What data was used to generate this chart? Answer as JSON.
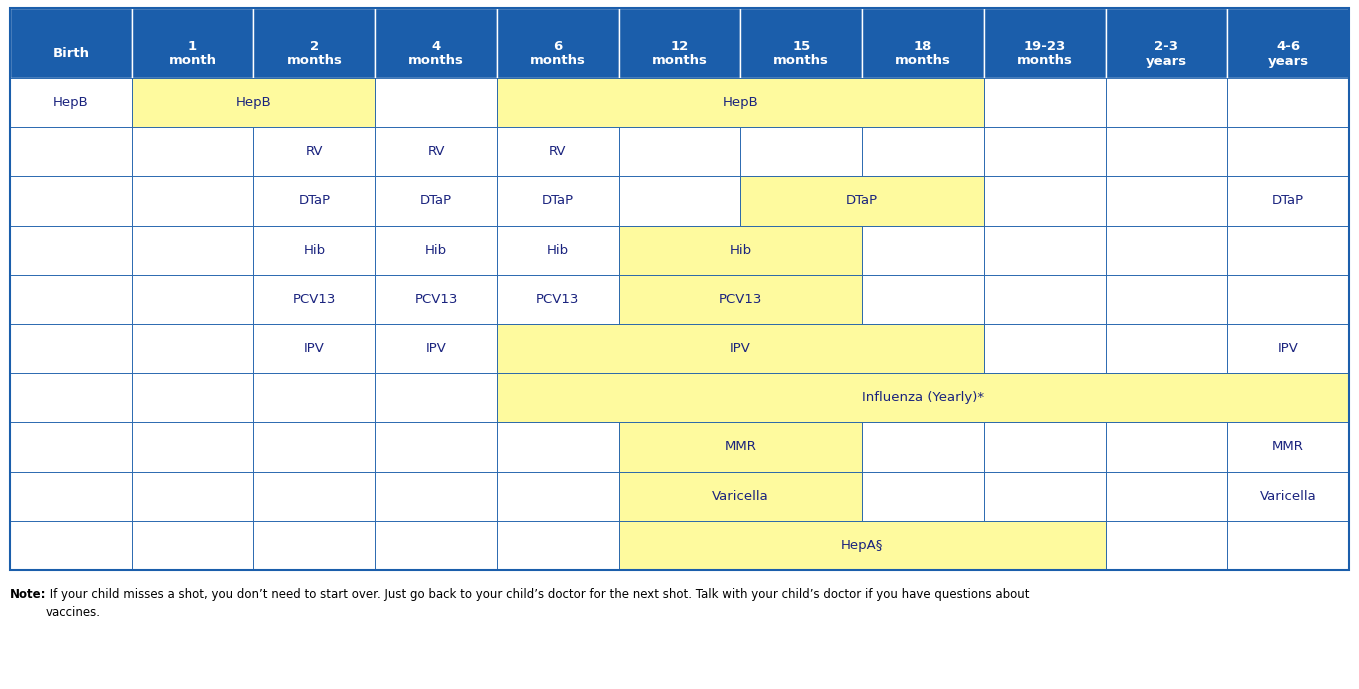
{
  "header_bg": "#1B5EAB",
  "yellow_bg": "#FEFA9E",
  "white_bg": "#FFFFFF",
  "border_color": "#1B5EAB",
  "text_color": "#1A237E",
  "col_labels": [
    "Birth",
    "1\nmonth",
    "2\nmonths",
    "4\nmonths",
    "6\nmonths",
    "12\nmonths",
    "15\nmonths",
    "18\nmonths",
    "19-23\nmonths",
    "2-3\nyears",
    "4-6\nyears"
  ],
  "note_bold": "Note:",
  "note_rest": " If your child misses a shot, you don’t need to start over. Just go back to your child’s doctor for the next shot. Talk with your child’s doctor if you have questions about\nvaccines.",
  "vaccine_spans": [
    [
      0,
      0,
      1,
      "HepB",
      false
    ],
    [
      0,
      1,
      3,
      "HepB",
      true
    ],
    [
      0,
      4,
      8,
      "HepB",
      true
    ],
    [
      1,
      2,
      3,
      "RV",
      false
    ],
    [
      1,
      3,
      4,
      "RV",
      false
    ],
    [
      1,
      4,
      5,
      "RV",
      false
    ],
    [
      2,
      2,
      3,
      "DTaP",
      false
    ],
    [
      2,
      3,
      4,
      "DTaP",
      false
    ],
    [
      2,
      4,
      5,
      "DTaP",
      false
    ],
    [
      2,
      6,
      8,
      "DTaP",
      true
    ],
    [
      2,
      10,
      11,
      "DTaP",
      false
    ],
    [
      3,
      2,
      3,
      "Hib",
      false
    ],
    [
      3,
      3,
      4,
      "Hib",
      false
    ],
    [
      3,
      4,
      5,
      "Hib",
      false
    ],
    [
      3,
      5,
      7,
      "Hib",
      true
    ],
    [
      4,
      2,
      3,
      "PCV13",
      false
    ],
    [
      4,
      3,
      4,
      "PCV13",
      false
    ],
    [
      4,
      4,
      5,
      "PCV13",
      false
    ],
    [
      4,
      5,
      7,
      "PCV13",
      true
    ],
    [
      5,
      2,
      3,
      "IPV",
      false
    ],
    [
      5,
      3,
      4,
      "IPV",
      false
    ],
    [
      5,
      4,
      8,
      "IPV",
      true
    ],
    [
      5,
      10,
      11,
      "IPV",
      false
    ],
    [
      6,
      4,
      11,
      "Influenza (Yearly)*",
      true
    ],
    [
      7,
      5,
      7,
      "MMR",
      true
    ],
    [
      7,
      10,
      11,
      "MMR",
      false
    ],
    [
      8,
      5,
      7,
      "Varicella",
      true
    ],
    [
      8,
      10,
      11,
      "Varicella",
      false
    ],
    [
      9,
      5,
      9,
      "HepA§",
      true
    ]
  ]
}
